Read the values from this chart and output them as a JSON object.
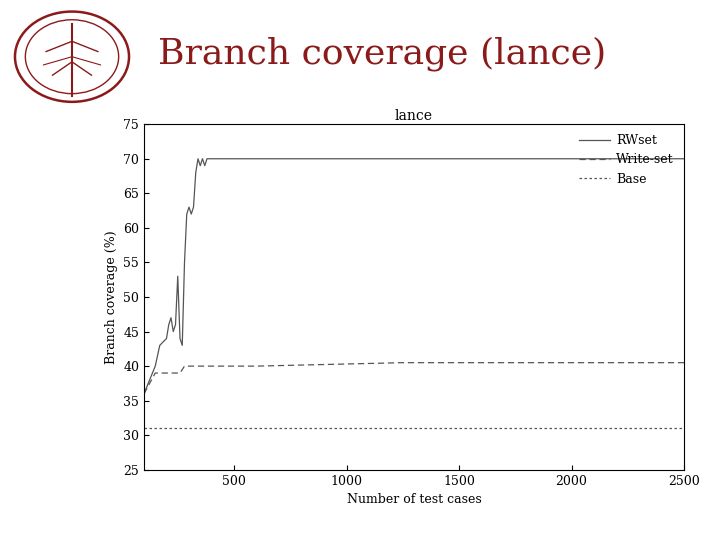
{
  "title": "Branch coverage (lance)",
  "plot_title": "lance",
  "xlabel": "Number of test cases",
  "ylabel": "Branch coverage (%)",
  "xlim": [
    100,
    2500
  ],
  "ylim": [
    25,
    75
  ],
  "xticks": [
    500,
    1000,
    1500,
    2000,
    2500
  ],
  "yticks": [
    25,
    30,
    35,
    40,
    45,
    50,
    55,
    60,
    65,
    70,
    75
  ],
  "rwset_x": [
    100,
    150,
    170,
    200,
    210,
    220,
    230,
    240,
    250,
    260,
    270,
    280,
    290,
    300,
    310,
    320,
    330,
    340,
    350,
    360,
    370,
    380,
    390,
    400,
    450,
    500,
    600,
    700,
    800,
    900,
    1000,
    1100,
    1200,
    1300,
    1400,
    1500,
    1600,
    1700,
    1800,
    1900,
    2000,
    2100,
    2200,
    2300,
    2400,
    2500
  ],
  "rwset_y": [
    36,
    40,
    43,
    44,
    46,
    47,
    45,
    46,
    53,
    44,
    43,
    55,
    62,
    63,
    62,
    63,
    68,
    70,
    69,
    70,
    69,
    70,
    70,
    70,
    70,
    70,
    70,
    70,
    70,
    70,
    70,
    70,
    70,
    70,
    70,
    70,
    70,
    70,
    70,
    70,
    70,
    70,
    70,
    70,
    70,
    70
  ],
  "writeset_x": [
    100,
    150,
    200,
    220,
    240,
    260,
    280,
    600,
    1250,
    1300,
    1500,
    1700,
    1900,
    2100,
    2300,
    2500
  ],
  "writeset_y": [
    36,
    39,
    39,
    39,
    39,
    39,
    40,
    40,
    40.5,
    40.5,
    40.5,
    40.5,
    40.5,
    40.5,
    40.5,
    40.5
  ],
  "base_x": [
    100,
    300,
    500,
    700,
    900,
    1100,
    1300,
    1500,
    1700,
    1900,
    2100,
    2300,
    2500
  ],
  "base_y": [
    31,
    31,
    31,
    31,
    31,
    31,
    31,
    31,
    31,
    31,
    31,
    31,
    31
  ],
  "rwset_color": "#555555",
  "writeset_color": "#555555",
  "base_color": "#555555",
  "bg_color": "#ffffff",
  "title_color": "#8b1a1a",
  "title_fontsize": 26,
  "axis_fontsize": 9,
  "tick_fontsize": 9,
  "legend_fontsize": 9,
  "plot_title_fontsize": 10
}
